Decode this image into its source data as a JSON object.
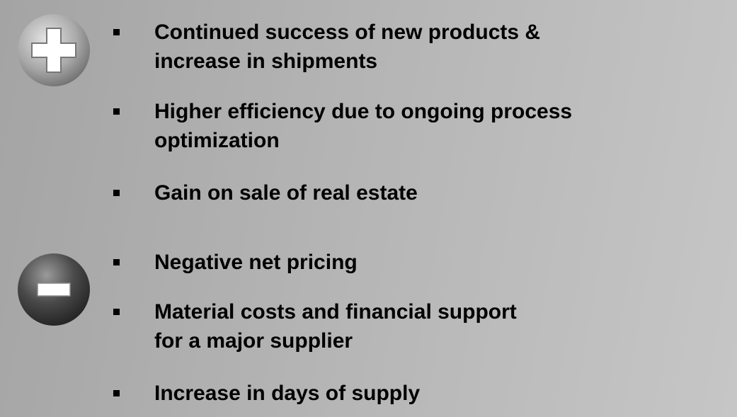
{
  "positives": {
    "items": [
      [
        "Continued success of new products &",
        "increase in shipments"
      ],
      [
        "Higher efficiency due to ongoing process",
        "optimization"
      ],
      [
        "Gain on sale of real estate"
      ]
    ]
  },
  "negatives": {
    "items": [
      [
        "Negative net pricing"
      ],
      [
        "Material costs and financial support",
        "for a major supplier"
      ],
      [
        "Increase in days of supply"
      ]
    ]
  }
}
